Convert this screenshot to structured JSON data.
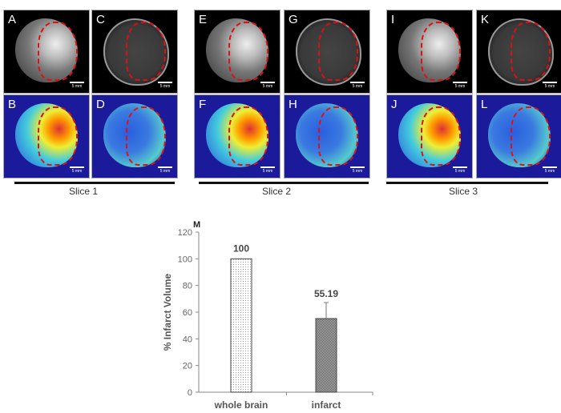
{
  "panels": [
    {
      "id": "A",
      "type": "gray",
      "dwi": false
    },
    {
      "id": "C",
      "type": "gray",
      "dwi": true
    },
    {
      "id": "B",
      "type": "color",
      "dwi": false
    },
    {
      "id": "D",
      "type": "color",
      "dwi": true
    },
    {
      "id": "E",
      "type": "gray",
      "dwi": false
    },
    {
      "id": "G",
      "type": "gray",
      "dwi": true
    },
    {
      "id": "F",
      "type": "color",
      "dwi": false
    },
    {
      "id": "H",
      "type": "color",
      "dwi": true
    },
    {
      "id": "I",
      "type": "gray",
      "dwi": false
    },
    {
      "id": "K",
      "type": "gray",
      "dwi": true
    },
    {
      "id": "J",
      "type": "color",
      "dwi": false
    },
    {
      "id": "L",
      "type": "color",
      "dwi": true
    }
  ],
  "scale_label": "5 mm",
  "slices": [
    "Slice 1",
    "Slice 2",
    "Slice 3"
  ],
  "chart_data": {
    "type": "bar",
    "panel_label": "M",
    "categories": [
      "whole brain",
      "infarct"
    ],
    "values": [
      100,
      55.19
    ],
    "data_labels": [
      "100",
      "55.19"
    ],
    "error": [
      0,
      12
    ],
    "ylabel": "% Infarct Volume",
    "ylim": [
      0,
      120
    ],
    "yticks": [
      "0",
      "20",
      "40",
      "60",
      "80",
      "100",
      "120"
    ],
    "grid": false
  }
}
